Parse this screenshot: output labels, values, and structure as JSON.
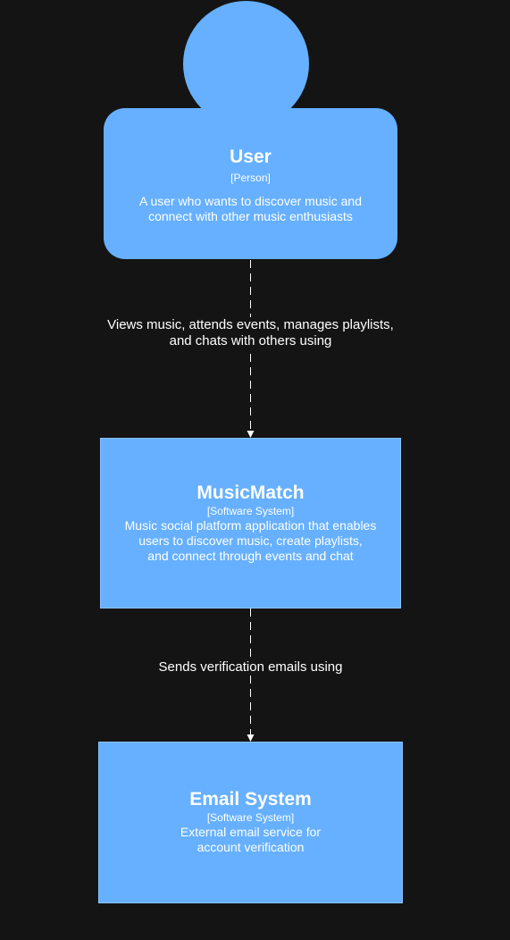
{
  "nodes": {
    "user": {
      "title": "User",
      "type": "[Person]",
      "description": "A user who wants to discover music and\nconnect with other music enthusiasts"
    },
    "musicmatch": {
      "title": "MusicMatch",
      "type": "[Software System]",
      "description": "Music social platform application that enables\nusers to discover music, create playlists,\nand connect through events and chat"
    },
    "email": {
      "title": "Email System",
      "type": "[Software System]",
      "description": "External email service for\naccount verification"
    }
  },
  "edges": {
    "user_to_musicmatch": "Views music, attends events, manages playlists,\nand chats with others using",
    "musicmatch_to_email": "Sends verification emails using"
  },
  "colors": {
    "background": "#141414",
    "node_fill": "#66b0ff",
    "text": "#ffffff",
    "connector": "#ffffff"
  }
}
